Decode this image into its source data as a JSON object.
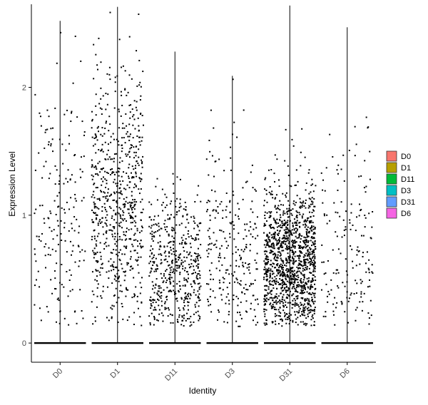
{
  "chart_data": {
    "type": "scatter",
    "subtype": "violin-jitter",
    "xlabel": "Identity",
    "ylabel": "Expression Level",
    "categories": [
      "D0",
      "D1",
      "D11",
      "D3",
      "D31",
      "D6"
    ],
    "y_ticks": [
      0,
      1,
      2
    ],
    "ylim": [
      -0.15,
      2.65
    ],
    "grid": false,
    "legend": {
      "position": "right",
      "entries": [
        {
          "label": "D0",
          "color": "#F8766D"
        },
        {
          "label": "D1",
          "color": "#B79F00"
        },
        {
          "label": "D11",
          "color": "#00BA38"
        },
        {
          "label": "D3",
          "color": "#00BFC4"
        },
        {
          "label": "D31",
          "color": "#619CFF"
        },
        {
          "label": "D6",
          "color": "#F564E3"
        }
      ]
    },
    "series": [
      {
        "name": "D0",
        "max": 2.52,
        "n_zero": 900,
        "nonzero": {
          "n": 190,
          "mean": 0.9,
          "sd": 0.6
        }
      },
      {
        "name": "D1",
        "max": 2.63,
        "n_zero": 900,
        "nonzero": {
          "n": 700,
          "mean": 1.05,
          "sd": 0.55
        }
      },
      {
        "name": "D11",
        "max": 2.28,
        "n_zero": 900,
        "nonzero": {
          "n": 520,
          "mean": 0.5,
          "sd": 0.35
        }
      },
      {
        "name": "D3",
        "max": 2.09,
        "n_zero": 900,
        "nonzero": {
          "n": 260,
          "mean": 0.6,
          "sd": 0.45
        }
      },
      {
        "name": "D31",
        "max": 2.64,
        "n_zero": 900,
        "nonzero": {
          "n": 1300,
          "mean": 0.6,
          "sd": 0.3
        }
      },
      {
        "name": "D6",
        "max": 2.47,
        "n_zero": 900,
        "nonzero": {
          "n": 170,
          "mean": 0.7,
          "sd": 0.45
        }
      }
    ],
    "point_color": "#000000",
    "violin_stroke": "#000000"
  }
}
